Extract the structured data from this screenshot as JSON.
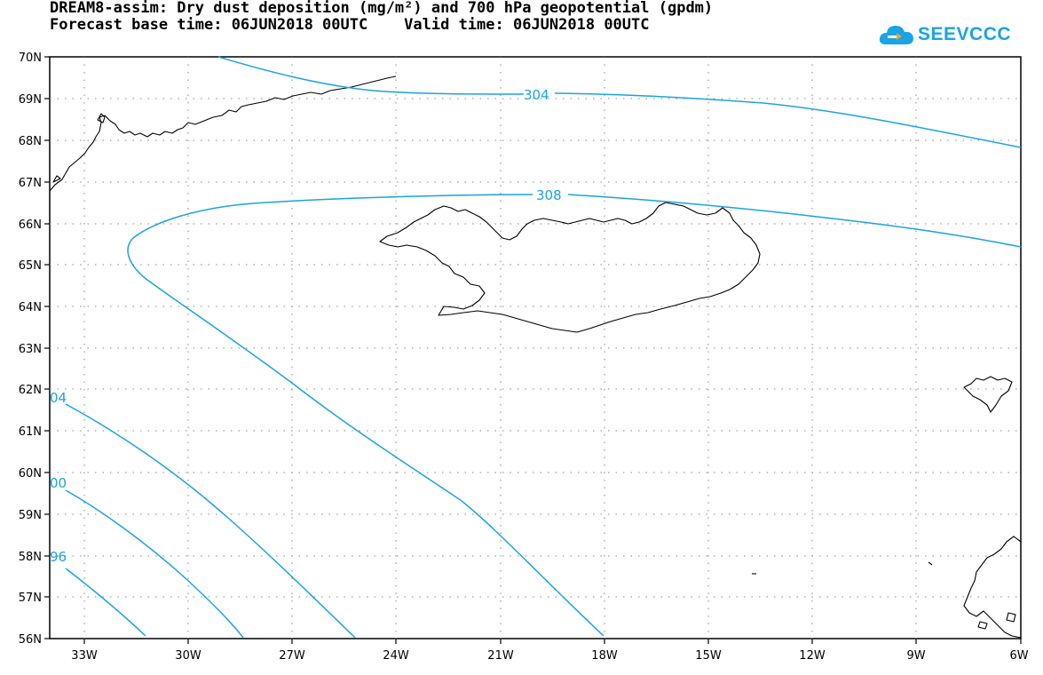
{
  "header": {
    "title_line1": "DREAM8-assim: Dry dust deposition (mg/m²) and 700 hPa geopotential (gpdm)",
    "title_line2": "Forecast base time: 06JUN2018 00UTC    Valid time: 06JUN2018 00UTC"
  },
  "logo": {
    "text": "SEEVCCC",
    "icon": "cloud-icon",
    "color": "#1aa3e6"
  },
  "axes": {
    "lat_labels": [
      "70N",
      "69N",
      "68N",
      "67N",
      "66N",
      "65N",
      "64N",
      "63N",
      "62N",
      "61N",
      "60N",
      "59N",
      "58N",
      "57N",
      "56N"
    ],
    "lon_labels": [
      "33W",
      "30W",
      "27W",
      "24W",
      "21W",
      "18W",
      "15W",
      "12W",
      "9W",
      "6W"
    ]
  },
  "contours": {
    "color": "#1aa3e6",
    "labels": [
      "304",
      "308",
      "04",
      "00",
      "96"
    ]
  }
}
